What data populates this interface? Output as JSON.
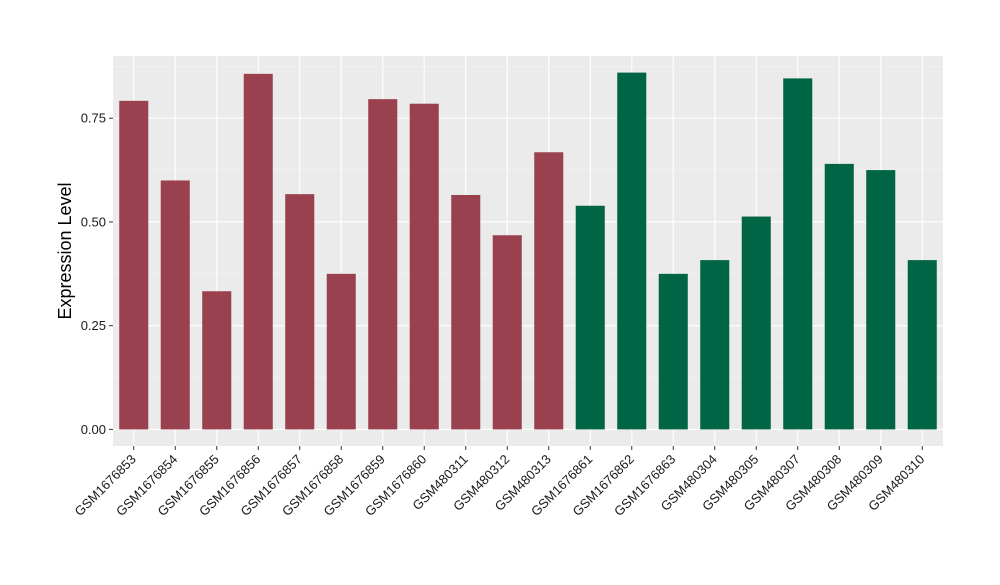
{
  "chart_data": {
    "type": "bar",
    "ylabel": "Expression Level",
    "xlabel": "",
    "ylim": [
      -0.04,
      0.9
    ],
    "yticks": [
      0.0,
      0.25,
      0.5,
      0.75
    ],
    "ytick_labels": [
      "0.00",
      "0.25",
      "0.50",
      "0.75"
    ],
    "grid": true,
    "legend": "none",
    "categories": [
      "GSM1676853",
      "GSM1676854",
      "GSM1676855",
      "GSM1676856",
      "GSM1676857",
      "GSM1676858",
      "GSM1676859",
      "GSM1676860",
      "GSM480311",
      "GSM480312",
      "GSM480313",
      "GSM1676861",
      "GSM1676862",
      "GSM1676863",
      "GSM480304",
      "GSM480305",
      "GSM480307",
      "GSM480308",
      "GSM480309",
      "GSM480310"
    ],
    "values": [
      0.792,
      0.6,
      0.333,
      0.857,
      0.567,
      0.375,
      0.796,
      0.785,
      0.565,
      0.468,
      0.668,
      0.539,
      0.86,
      0.375,
      0.408,
      0.513,
      0.846,
      0.64,
      0.625,
      0.408
    ],
    "bar_colors": [
      "#99414f",
      "#99414f",
      "#99414f",
      "#99414f",
      "#99414f",
      "#99414f",
      "#99414f",
      "#99414f",
      "#99414f",
      "#99414f",
      "#99414f",
      "#006545",
      "#006545",
      "#006545",
      "#006545",
      "#006545",
      "#006545",
      "#006545",
      "#006545",
      "#006545"
    ],
    "colors": {
      "panel_background": "#ebebeb",
      "grid_major": "#ffffff",
      "grid_minor": "#f5f5f5",
      "tick_color": "#333333"
    }
  }
}
